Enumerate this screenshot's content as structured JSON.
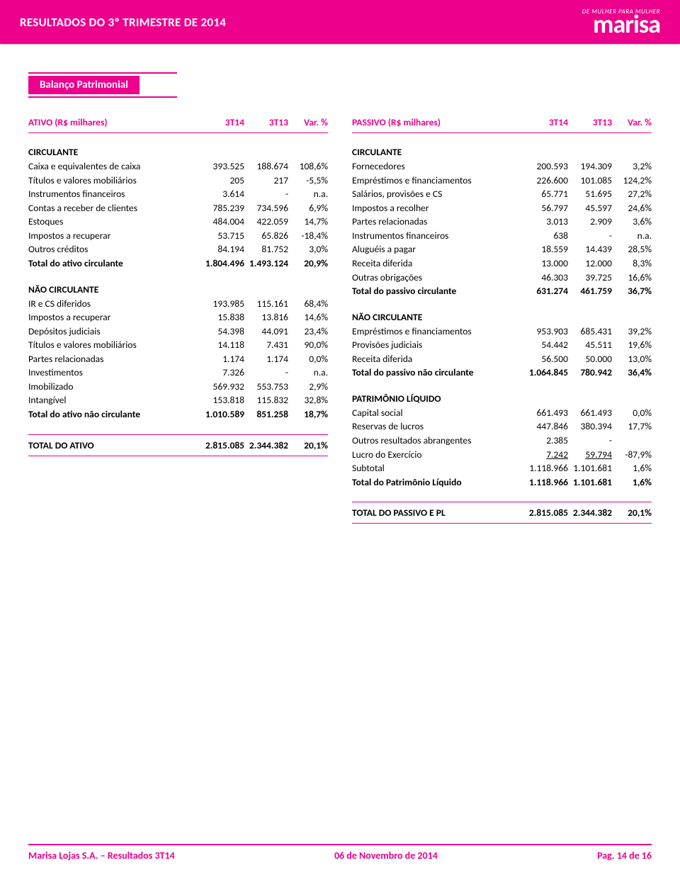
{
  "header": {
    "title": "RESULTADOS DO 3º TRIMESTRE DE 2014",
    "brand_tagline": "DE MULHER PARA MULHER",
    "brand_name": "marisa"
  },
  "section_title": "Balanço Patrimonial",
  "ativo": {
    "heading": "ATIVO (R$ milhares)",
    "cols": [
      "3T14",
      "3T13",
      "Var. %"
    ],
    "groups": [
      {
        "title": "CIRCULANTE",
        "rows": [
          {
            "label": "Caixa e equivalentes de caixa",
            "v1": "393.525",
            "v2": "188.674",
            "v3": "108,6%"
          },
          {
            "label": "Títulos e valores mobiliários",
            "v1": "205",
            "v2": "217",
            "v3": "-5,5%"
          },
          {
            "label": "Instrumentos financeiros",
            "v1": "3.614",
            "v2": "-",
            "v3": "n.a."
          },
          {
            "label": "Contas a receber de clientes",
            "v1": "785.239",
            "v2": "734.596",
            "v3": "6,9%"
          },
          {
            "label": "Estoques",
            "v1": "484.004",
            "v2": "422.059",
            "v3": "14,7%"
          },
          {
            "label": "Impostos a recuperar",
            "v1": "53.715",
            "v2": "65.826",
            "v3": "-18,4%"
          },
          {
            "label": "Outros créditos",
            "v1": "84.194",
            "v2": "81.752",
            "v3": "3,0%"
          },
          {
            "label": "Total do ativo circulante",
            "v1": "1.804.496",
            "v2": "1.493.124",
            "v3": "20,9%",
            "bold": true
          }
        ]
      },
      {
        "title": "NÃO CIRCULANTE",
        "rows": [
          {
            "label": "IR e CS diferidos",
            "v1": "193.985",
            "v2": "115.161",
            "v3": "68,4%"
          },
          {
            "label": "Impostos a recuperar",
            "v1": "15.838",
            "v2": "13.816",
            "v3": "14,6%"
          },
          {
            "label": "Depósitos judiciais",
            "v1": "54.398",
            "v2": "44.091",
            "v3": "23,4%"
          },
          {
            "label": "Títulos e valores mobiliários",
            "v1": "14.118",
            "v2": "7.431",
            "v3": "90,0%"
          },
          {
            "label": "Partes relacionadas",
            "v1": "1.174",
            "v2": "1.174",
            "v3": "0,0%"
          },
          {
            "label": "Investimentos",
            "v1": "7.326",
            "v2": "-",
            "v3": "n.a."
          },
          {
            "label": "Imobilizado",
            "v1": "569.932",
            "v2": "553.753",
            "v3": "2,9%"
          },
          {
            "label": "Intangível",
            "v1": "153.818",
            "v2": "115.832",
            "v3": "32,8%"
          },
          {
            "label": "Total do ativo não circulante",
            "v1": "1.010.589",
            "v2": "851.258",
            "v3": "18,7%",
            "bold": true
          }
        ]
      }
    ],
    "total": {
      "label": "TOTAL DO ATIVO",
      "v1": "2.815.085",
      "v2": "2.344.382",
      "v3": "20,1%"
    }
  },
  "passivo": {
    "heading": "PASSIVO (R$ milhares)",
    "cols": [
      "3T14",
      "3T13",
      "Var. %"
    ],
    "groups": [
      {
        "title": "CIRCULANTE",
        "rows": [
          {
            "label": "Fornecedores",
            "v1": "200.593",
            "v2": "194.309",
            "v3": "3,2%"
          },
          {
            "label": "Empréstimos e financiamentos",
            "v1": "226.600",
            "v2": "101.085",
            "v3": "124,2%"
          },
          {
            "label": "Salários, provisões e CS",
            "v1": "65.771",
            "v2": "51.695",
            "v3": "27,2%"
          },
          {
            "label": "Impostos a recolher",
            "v1": "56.797",
            "v2": "45.597",
            "v3": "24,6%"
          },
          {
            "label": "Partes relacionadas",
            "v1": "3.013",
            "v2": "2.909",
            "v3": "3,6%"
          },
          {
            "label": "Instrumentos financeiros",
            "v1": "638",
            "v2": "-",
            "v3": "n.a."
          },
          {
            "label": "Aluguéis a pagar",
            "v1": "18.559",
            "v2": "14.439",
            "v3": "28,5%"
          },
          {
            "label": "Receita diferida",
            "v1": "13.000",
            "v2": "12.000",
            "v3": "8,3%"
          },
          {
            "label": "Outras obrigações",
            "v1": "46.303",
            "v2": "39.725",
            "v3": "16,6%"
          },
          {
            "label": "Total do passivo circulante",
            "v1": "631.274",
            "v2": "461.759",
            "v3": "36,7%",
            "bold": true
          }
        ]
      },
      {
        "title": "NÃO CIRCULANTE",
        "rows": [
          {
            "label": "Empréstimos e financiamentos",
            "v1": "953.903",
            "v2": "685.431",
            "v3": "39,2%"
          },
          {
            "label": "Provisões judiciais",
            "v1": "54.442",
            "v2": "45.511",
            "v3": "19,6%"
          },
          {
            "label": "Receita diferida",
            "v1": "56.500",
            "v2": "50.000",
            "v3": "13,0%"
          },
          {
            "label": "Total do passivo não circulante",
            "v1": "1.064.845",
            "v2": "780.942",
            "v3": "36,4%",
            "bold": true
          }
        ]
      },
      {
        "title": "PATRIMÔNIO LÍQUIDO",
        "rows": [
          {
            "label": "Capital social",
            "v1": "661.493",
            "v2": "661.493",
            "v3": "0,0%"
          },
          {
            "label": "Reservas de lucros",
            "v1": "447.846",
            "v2": "380.394",
            "v3": "17,7%"
          },
          {
            "label": "Outros resultados abrangentes",
            "v1": "2.385",
            "v2": "-",
            "v3": ""
          },
          {
            "label": "Lucro do Exercício",
            "v1": "7.242",
            "v2": "59.794",
            "v3": "-87,9%",
            "underlined": true
          },
          {
            "label": "Subtotal",
            "v1": "1.118.966",
            "v2": "1.101.681",
            "v3": "1,6%"
          },
          {
            "label": "Total do Patrimônio Líquido",
            "v1": "1.118.966",
            "v2": "1.101.681",
            "v3": "1,6%",
            "bold": true
          }
        ]
      }
    ],
    "total": {
      "label": "TOTAL DO PASSIVO E PL",
      "v1": "2.815.085",
      "v2": "2.344.382",
      "v3": "20,1%"
    }
  },
  "footer": {
    "left": "Marisa Lojas S.A. – Resultados 3T14",
    "center": "06 de Novembro de 2014",
    "right": "Pag. 14 de 16"
  },
  "colors": {
    "accent": "#ec008c",
    "text": "#000000",
    "background": "#ffffff"
  }
}
